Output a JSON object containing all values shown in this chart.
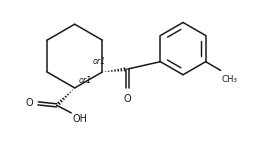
{
  "bg": "#ffffff",
  "lc": "#1a1a1a",
  "lw": 1.1,
  "fs": 6.5,
  "or_fs": 5.8,
  "figsize": [
    2.54,
    1.52
  ],
  "dpi": 100,
  "xlim": [
    0,
    10.2
  ],
  "ylim": [
    0,
    6.1
  ]
}
